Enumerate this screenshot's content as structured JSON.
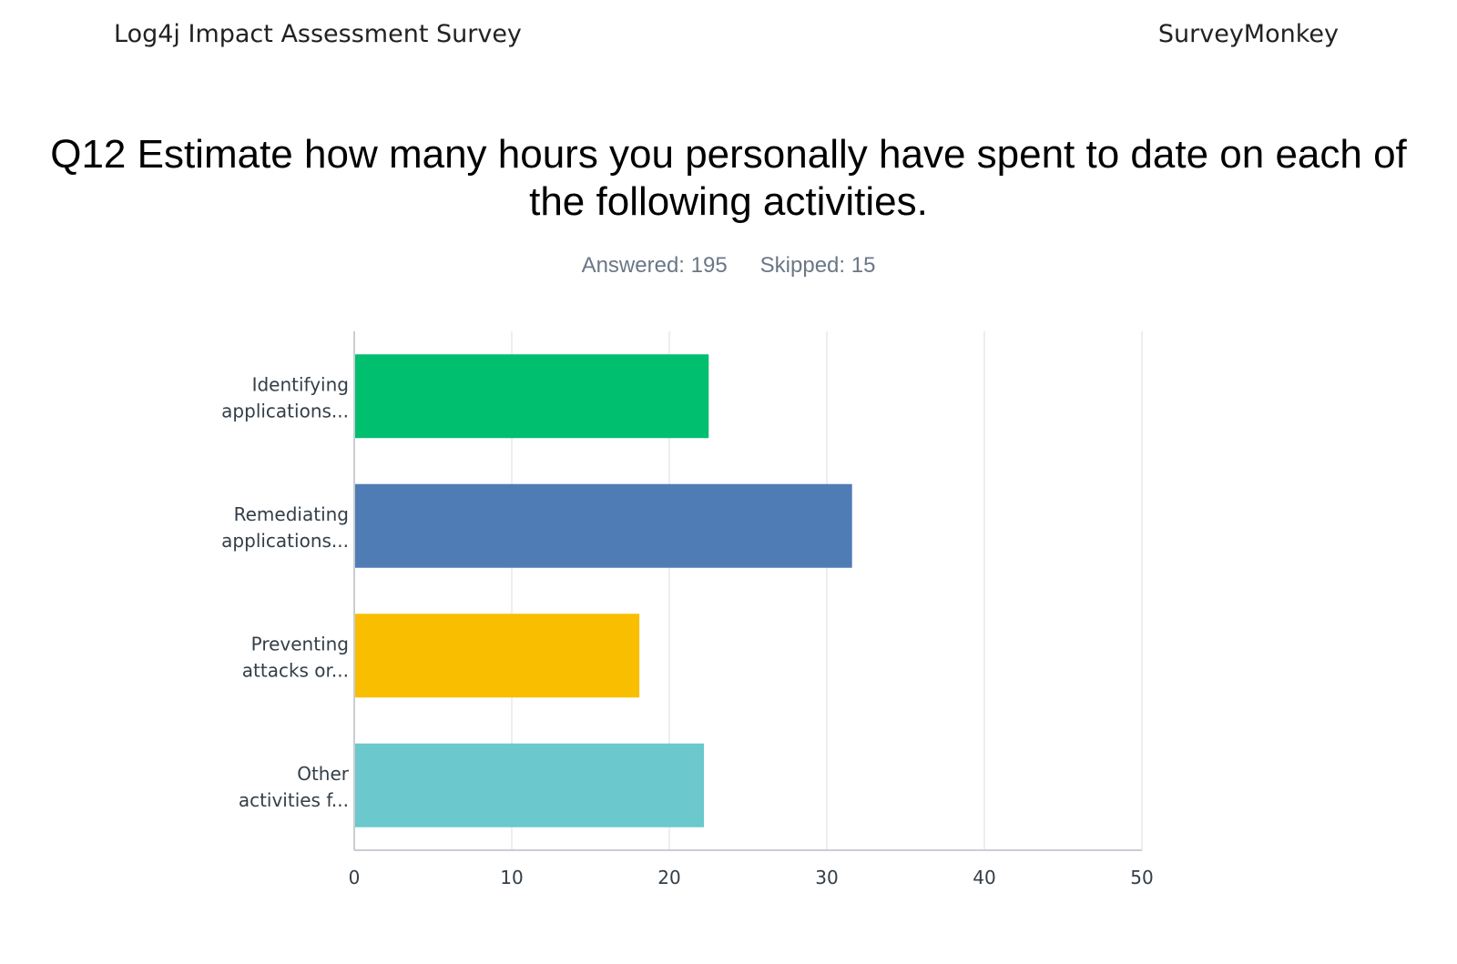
{
  "header": {
    "survey_title": "Log4j Impact Assessment Survey",
    "brand": "SurveyMonkey"
  },
  "question": {
    "text": "Q12 Estimate how many hours you personally have spent to date on each of the following activities."
  },
  "stats": {
    "answered": "Answered: 195",
    "skipped": "Skipped: 15"
  },
  "chart_data": {
    "type": "bar",
    "orientation": "horizontal",
    "title": "",
    "xlabel": "",
    "ylabel": "",
    "categories": [
      [
        "Identifying",
        "applications..."
      ],
      [
        "Remediating",
        "applications..."
      ],
      [
        "Preventing",
        "attacks or..."
      ],
      [
        "Other",
        "activities f..."
      ]
    ],
    "values": [
      22.5,
      31.6,
      18.1,
      22.2
    ],
    "colors": [
      "#00bf6f",
      "#507cb6",
      "#f9be00",
      "#6bc8cd"
    ],
    "xlim": [
      0,
      50
    ],
    "ticks": [
      0,
      10,
      20,
      30,
      40,
      50
    ],
    "grid": true
  }
}
